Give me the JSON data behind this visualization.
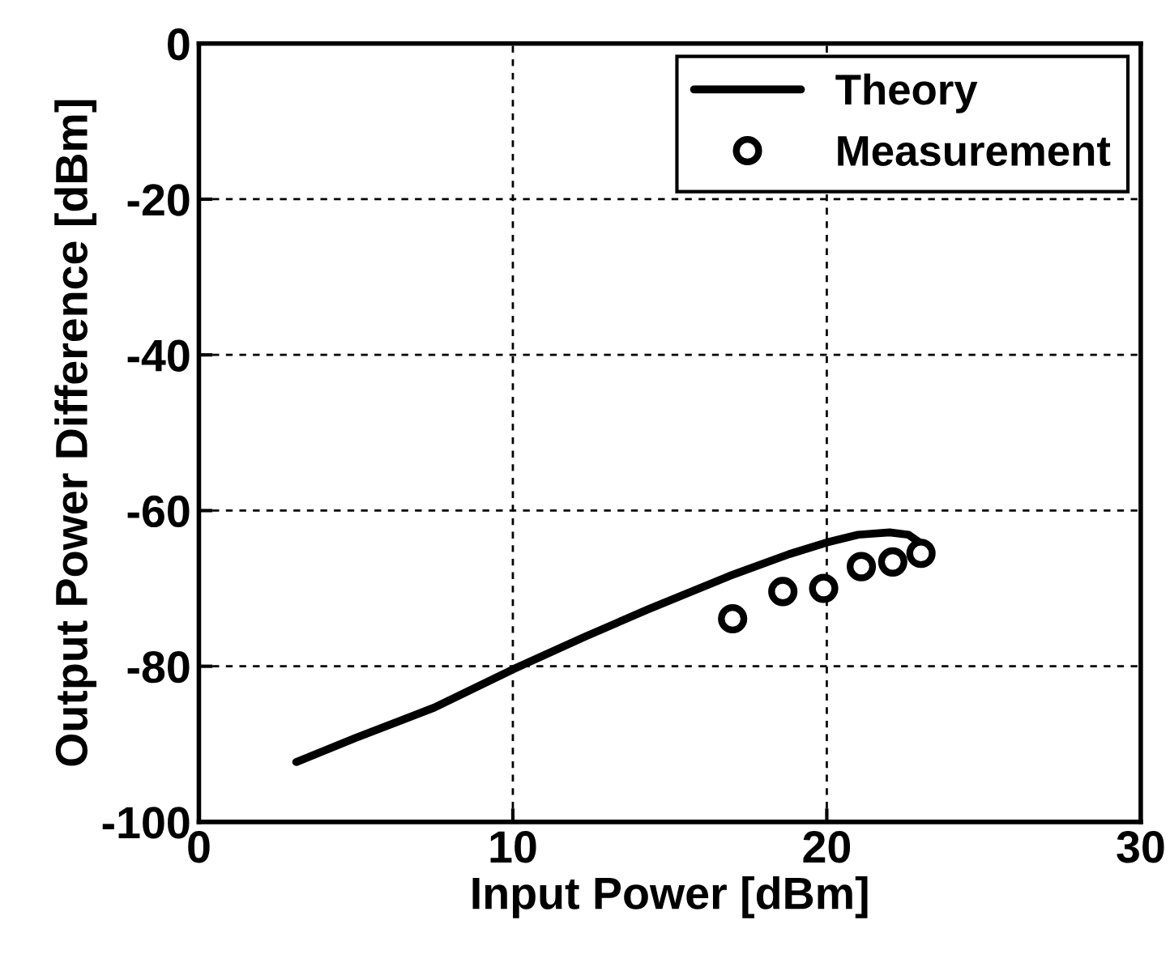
{
  "chart_data": {
    "type": "line",
    "xlabel": "Input Power [dBm]",
    "ylabel": "Output Power Difference [dBm]",
    "xlim": [
      0,
      30
    ],
    "xticks": [
      0,
      10,
      20,
      30
    ],
    "ylim": [
      -100,
      0
    ],
    "yticks": [
      -100,
      -80,
      -60,
      -40,
      -20,
      0
    ],
    "grid": true,
    "legend": "top right",
    "series": [
      {
        "name": "Theory",
        "color": "#000000",
        "line_style": "solid",
        "marker": "none",
        "x": [
          3.1,
          5,
          7.5,
          10,
          12.3,
          14.3,
          16.9,
          18.8,
          20.0,
          21.0,
          22.0,
          22.6,
          23.1
        ],
        "values": [
          -92.3,
          -89.2,
          -85.3,
          -80.4,
          -76.2,
          -72.7,
          -68.4,
          -65.6,
          -64.1,
          -63.1,
          -62.8,
          -63.1,
          -64.5
        ]
      },
      {
        "name": "Measurement",
        "type": "scatter",
        "color": "#000000",
        "marker": "circle",
        "x": [
          17.0,
          18.6,
          19.9,
          21.1,
          22.1,
          23.0
        ],
        "values": [
          -73.9,
          -70.4,
          -70.0,
          -67.2,
          -66.6,
          -65.5
        ]
      }
    ]
  }
}
